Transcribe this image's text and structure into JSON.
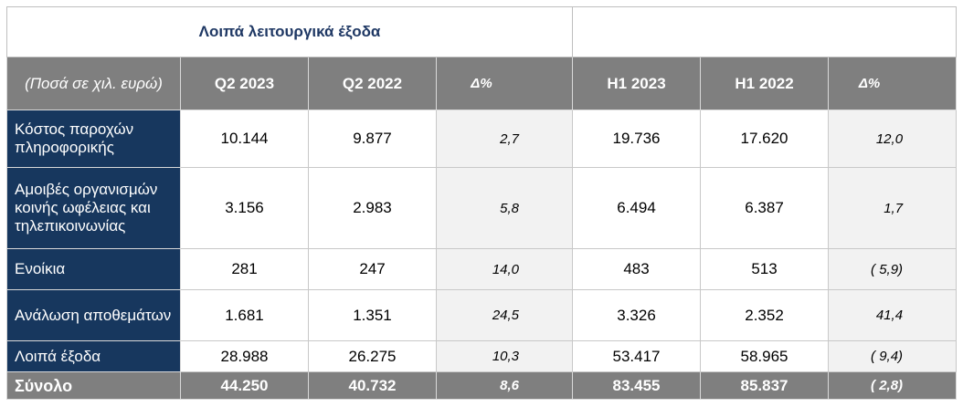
{
  "table": {
    "title": "Λοιπά λειτουργικά έξοδα",
    "header": [
      "(Ποσά σε χιλ. ευρώ)",
      "Q2 2023",
      "Q2 2022",
      "Δ%",
      "H1 2023",
      "H1 2022",
      "Δ%"
    ],
    "rows": [
      [
        "Κόστος παροχών πληροφορικής",
        "10.144",
        "9.877",
        "2,7",
        "19.736",
        "17.620",
        "12,0"
      ],
      [
        "Αμοιβές οργανισμών κοινής ωφέλειας και τηλεπικοινωνίας",
        "3.156",
        "2.983",
        "5,8",
        "6.494",
        "6.387",
        "1,7"
      ],
      [
        "Ενοίκια",
        "281",
        "247",
        "14,0",
        "483",
        "513",
        "( 5,9)"
      ],
      [
        "Ανάλωση αποθεμάτων",
        "1.681",
        "1.351",
        "24,5",
        "3.326",
        "2.352",
        "41,4"
      ],
      [
        "Λοιπά έξοδα",
        "28.988",
        "26.275",
        "10,3",
        "53.417",
        "58.965",
        "( 9,4)"
      ]
    ],
    "total": [
      "Σύνολο",
      "44.250",
      "40.732",
      "8,6",
      "83.455",
      "85.837",
      "( 2,8)"
    ]
  }
}
